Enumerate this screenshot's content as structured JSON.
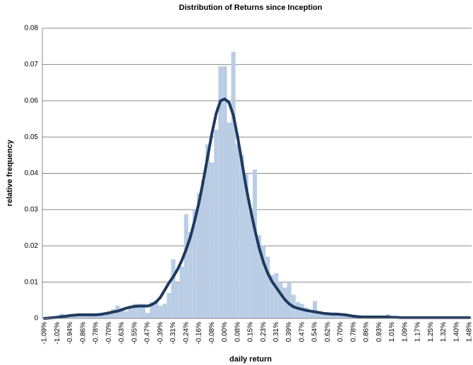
{
  "chart_data": {
    "type": "combo",
    "title": "Distribution of Returns since Inception",
    "x_label": "daily return",
    "y_label": "relative frequency",
    "categories": [
      "-1.09%",
      null,
      null,
      "-1.02%",
      null,
      null,
      "-0.94%",
      null,
      null,
      "-0.86%",
      null,
      null,
      "-0.78%",
      null,
      null,
      "-0.70%",
      null,
      null,
      "-0.63%",
      null,
      null,
      "-0.55%",
      null,
      null,
      "-0.47%",
      null,
      null,
      "-0.39%",
      null,
      null,
      "-0.31%",
      null,
      null,
      "-0.24%",
      null,
      null,
      "-0.16%",
      null,
      null,
      "-0.08%",
      null,
      null,
      "0.00%",
      null,
      null,
      "0.08%",
      null,
      null,
      "0.15%",
      null,
      null,
      "0.23%",
      null,
      null,
      "0.31%",
      null,
      null,
      "0.39%",
      null,
      null,
      "0.47%",
      null,
      null,
      "0.54%",
      null,
      null,
      "0.62%",
      null,
      null,
      "0.70%",
      null,
      null,
      "0.78%",
      null,
      null,
      "0.86%",
      null,
      null,
      "0.93%",
      null,
      null,
      "1.01%",
      null,
      null,
      "1.09%",
      null,
      null,
      "1.17%",
      null,
      null,
      "1.25%",
      null,
      null,
      "1.32%",
      null,
      null,
      "1.40%",
      null,
      null,
      "1.48%"
    ],
    "series": [
      {
        "type": "bar",
        "color": "#b9cde5",
        "values": [
          0.0003,
          0.0003,
          0.0005,
          0.0008,
          0.0013,
          0.001,
          0.0008,
          0.0008,
          0.001,
          0.001,
          0.0008,
          0.001,
          0.001,
          0.0013,
          0.0015,
          0.002,
          0.0025,
          0.0035,
          0.0025,
          0.002,
          0.003,
          0.004,
          0.004,
          0.004,
          0.0015,
          0.0045,
          0.005,
          0.0035,
          0.004,
          0.007,
          0.0163,
          0.0098,
          0.0143,
          0.0287,
          0.0238,
          0.03,
          0.0345,
          0.038,
          0.048,
          0.043,
          0.052,
          0.0695,
          0.0695,
          0.054,
          0.0735,
          0.048,
          0.045,
          0.04,
          0.0295,
          0.041,
          0.023,
          0.02,
          0.017,
          0.012,
          0.0125,
          0.01,
          0.0085,
          0.01,
          0.0065,
          0.0045,
          0.004,
          0.003,
          0.0015,
          0.0048,
          0.002,
          0.0015,
          0.0012,
          0.001,
          0.001,
          0.0008,
          0.0008,
          0.0006,
          0.0005,
          0.0005,
          0.0004,
          0.0004,
          0.0005,
          0.0004,
          0.0004,
          0.0003,
          0.0012,
          0.0004,
          0.0003,
          0.0003,
          0.0003,
          0.0002,
          0.0003,
          0.0002,
          0.0002,
          0.0002,
          0.0003,
          0.0002,
          0.0002,
          0.0002,
          0.0002,
          0.0002,
          0.0003,
          0.0002,
          0.0002,
          0.0002
        ]
      },
      {
        "type": "line",
        "color": "#1f3a5f",
        "values": [
          0,
          0.0001,
          0.0002,
          0.0003,
          0.0005,
          0.0006,
          0.0008,
          0.0009,
          0.001,
          0.001,
          0.001,
          0.001,
          0.001,
          0.0011,
          0.0013,
          0.0015,
          0.0018,
          0.002,
          0.0024,
          0.0028,
          0.0031,
          0.0033,
          0.0034,
          0.0034,
          0.0034,
          0.0038,
          0.0045,
          0.0058,
          0.0078,
          0.0098,
          0.0115,
          0.0135,
          0.016,
          0.019,
          0.0225,
          0.027,
          0.032,
          0.038,
          0.0445,
          0.051,
          0.0565,
          0.06,
          0.0605,
          0.0595,
          0.056,
          0.05,
          0.043,
          0.036,
          0.03,
          0.0245,
          0.0195,
          0.0155,
          0.0125,
          0.0102,
          0.0085,
          0.0068,
          0.0052,
          0.004,
          0.0032,
          0.0028,
          0.0025,
          0.0022,
          0.002,
          0.0018,
          0.0016,
          0.0014,
          0.0013,
          0.0012,
          0.0012,
          0.0011,
          0.001,
          0.0008,
          0.0006,
          0.0005,
          0.0004,
          0.0004,
          0.0004,
          0.0004,
          0.0004,
          0.0004,
          0.0004,
          0.0003,
          0.0003,
          0.0002,
          0.0002,
          0.0002,
          0.0002,
          0.0002,
          0.0002,
          0.0002,
          0.0002,
          0.0002,
          0.0002,
          0.0002,
          0.0002,
          0.0002,
          0.0002,
          0.0002,
          0.0002,
          0.0002
        ]
      }
    ],
    "ylim": [
      0,
      0.08
    ],
    "yticks": [
      0,
      0.01,
      0.02,
      0.03,
      0.04,
      0.05,
      0.06,
      0.07,
      0.08
    ],
    "grid": true
  }
}
